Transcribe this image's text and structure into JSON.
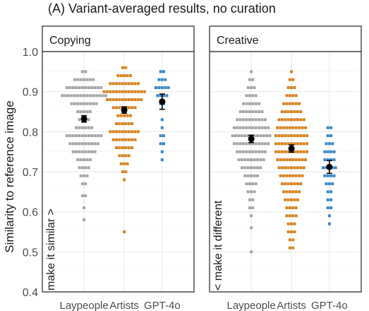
{
  "figure_title": "(A) Variant-averaged results, no curation",
  "y_axis_title": "Similarity to reference image",
  "chart_data": {
    "type": "scatter",
    "subtype": "beeswarm with mean and error bars",
    "ylim": [
      0.4,
      1.0
    ],
    "y_ticks": [
      "0.4",
      "0.5",
      "0.6",
      "0.7",
      "0.8",
      "0.9",
      "1.0"
    ],
    "ylabel": "Similarity to reference image",
    "grid": true,
    "colors": {
      "Laypeople": "#a6a6a6",
      "Artists": "#d9821f",
      "GPT-4o": "#3a87c8"
    },
    "panels": [
      {
        "title": "Copying",
        "annotation": "make it similar >",
        "categories": [
          "Laypeople",
          "Artists",
          "GPT-4o"
        ],
        "series": [
          {
            "name": "Laypeople",
            "mean": 0.832,
            "error": [
              0.824,
              0.84
            ],
            "range": [
              0.58,
              0.95
            ],
            "density": [
              [
                0.95,
                2
              ],
              [
                0.93,
                7
              ],
              [
                0.91,
                12
              ],
              [
                0.89,
                15
              ],
              [
                0.87,
                9
              ],
              [
                0.85,
                5
              ],
              [
                0.83,
                4
              ],
              [
                0.81,
                6
              ],
              [
                0.79,
                12
              ],
              [
                0.77,
                10
              ],
              [
                0.75,
                8
              ],
              [
                0.73,
                5
              ],
              [
                0.71,
                4
              ],
              [
                0.69,
                3
              ],
              [
                0.67,
                2
              ],
              [
                0.64,
                2
              ],
              [
                0.61,
                1
              ],
              [
                0.58,
                1
              ]
            ]
          },
          {
            "name": "Artists",
            "mean": 0.854,
            "error": [
              0.846,
              0.862
            ],
            "range": [
              0.55,
              0.96
            ],
            "density": [
              [
                0.96,
                2
              ],
              [
                0.94,
                5
              ],
              [
                0.92,
                10
              ],
              [
                0.9,
                14
              ],
              [
                0.88,
                12
              ],
              [
                0.86,
                8
              ],
              [
                0.84,
                5
              ],
              [
                0.82,
                6
              ],
              [
                0.8,
                10
              ],
              [
                0.78,
                8
              ],
              [
                0.76,
                6
              ],
              [
                0.74,
                4
              ],
              [
                0.72,
                3
              ],
              [
                0.7,
                2
              ],
              [
                0.68,
                1
              ],
              [
                0.55,
                1
              ]
            ]
          },
          {
            "name": "GPT-4o",
            "mean": 0.875,
            "error": [
              0.856,
              0.894
            ],
            "range": [
              0.72,
              0.95
            ],
            "density": [
              [
                0.95,
                2
              ],
              [
                0.93,
                3
              ],
              [
                0.91,
                5
              ],
              [
                0.89,
                4
              ],
              [
                0.87,
                2
              ],
              [
                0.83,
                1
              ],
              [
                0.81,
                1
              ],
              [
                0.79,
                2
              ],
              [
                0.77,
                2
              ],
              [
                0.75,
                1
              ],
              [
                0.73,
                1
              ]
            ]
          }
        ]
      },
      {
        "title": "Creative",
        "annotation": "< make it different",
        "categories": [
          "Laypeople",
          "Artists",
          "GPT-4o"
        ],
        "series": [
          {
            "name": "Laypeople",
            "mean": 0.782,
            "error": [
              0.773,
              0.791
            ],
            "range": [
              0.5,
              0.96
            ],
            "density": [
              [
                0.95,
                1
              ],
              [
                0.93,
                2
              ],
              [
                0.91,
                3
              ],
              [
                0.89,
                4
              ],
              [
                0.87,
                6
              ],
              [
                0.85,
                8
              ],
              [
                0.83,
                10
              ],
              [
                0.81,
                12
              ],
              [
                0.79,
                13
              ],
              [
                0.77,
                12
              ],
              [
                0.75,
                10
              ],
              [
                0.73,
                9
              ],
              [
                0.71,
                7
              ],
              [
                0.69,
                5
              ],
              [
                0.67,
                4
              ],
              [
                0.65,
                3
              ],
              [
                0.63,
                2
              ],
              [
                0.61,
                2
              ],
              [
                0.59,
                1
              ],
              [
                0.56,
                1
              ],
              [
                0.5,
                1
              ]
            ]
          },
          {
            "name": "Artists",
            "mean": 0.758,
            "error": [
              0.749,
              0.767
            ],
            "range": [
              0.5,
              0.95
            ],
            "density": [
              [
                0.95,
                1
              ],
              [
                0.93,
                2
              ],
              [
                0.91,
                3
              ],
              [
                0.89,
                4
              ],
              [
                0.87,
                6
              ],
              [
                0.85,
                7
              ],
              [
                0.83,
                9
              ],
              [
                0.81,
                10
              ],
              [
                0.79,
                11
              ],
              [
                0.77,
                11
              ],
              [
                0.75,
                11
              ],
              [
                0.73,
                10
              ],
              [
                0.71,
                9
              ],
              [
                0.69,
                8
              ],
              [
                0.67,
                7
              ],
              [
                0.65,
                6
              ],
              [
                0.63,
                5
              ],
              [
                0.61,
                4
              ],
              [
                0.59,
                4
              ],
              [
                0.57,
                3
              ],
              [
                0.55,
                3
              ],
              [
                0.53,
                2
              ],
              [
                0.51,
                2
              ]
            ]
          },
          {
            "name": "GPT-4o",
            "mean": 0.712,
            "error": [
              0.696,
              0.728
            ],
            "range": [
              0.57,
              0.81
            ],
            "density": [
              [
                0.81,
                2
              ],
              [
                0.79,
                2
              ],
              [
                0.77,
                3
              ],
              [
                0.75,
                4
              ],
              [
                0.73,
                4
              ],
              [
                0.71,
                5
              ],
              [
                0.69,
                4
              ],
              [
                0.67,
                3
              ],
              [
                0.65,
                2
              ],
              [
                0.63,
                2
              ],
              [
                0.61,
                2
              ],
              [
                0.59,
                1
              ],
              [
                0.57,
                1
              ]
            ]
          }
        ]
      }
    ]
  }
}
